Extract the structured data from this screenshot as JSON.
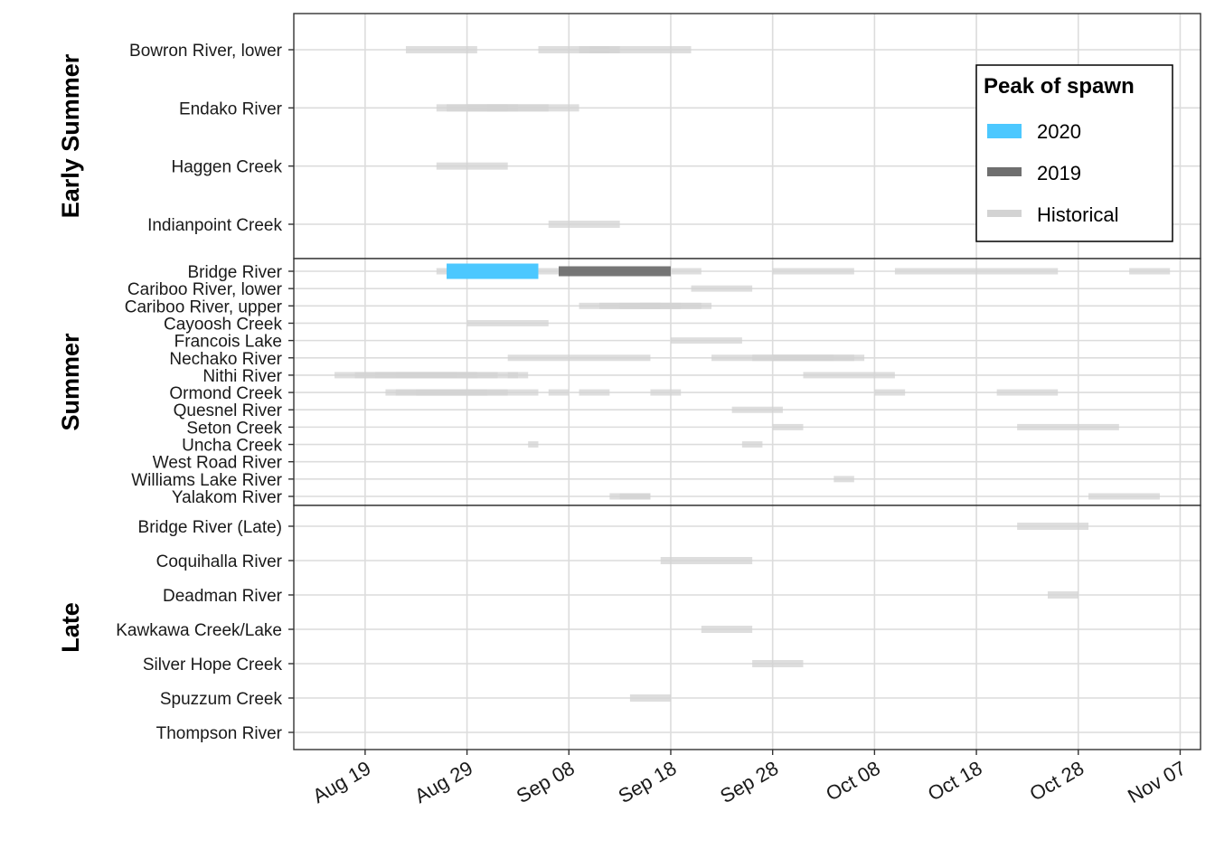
{
  "chart_data": {
    "type": "range-bar",
    "x_axis": {
      "ticks": [
        "Aug 19",
        "Aug 29",
        "Sep 08",
        "Sep 18",
        "Sep 28",
        "Oct 08",
        "Oct 18",
        "Oct 28",
        "Nov 07"
      ],
      "range": [
        "Aug 12",
        "Nov 09"
      ]
    },
    "legend": {
      "title": "Peak of spawn",
      "placement": "top-right",
      "entries": [
        {
          "label": "2020",
          "color": "#4cc8ff"
        },
        {
          "label": "2019",
          "color": "#6f6f6f"
        },
        {
          "label": "Historical",
          "color": "#d3d3d3"
        }
      ]
    },
    "panels": [
      {
        "name": "Early Summer",
        "streams": [
          "Bowron River, lower",
          "Endako River",
          "Haggen Creek",
          "Indianpoint Creek"
        ],
        "historical": [
          [
            "Bowron River, lower",
            "Aug 23",
            "Aug 30"
          ],
          [
            "Bowron River, lower",
            "Sep 05",
            "Sep 20"
          ],
          [
            "Bowron River, lower",
            "Sep 09",
            "Sep 13"
          ],
          [
            "Bowron River, lower",
            "Sep 10",
            "Sep 12"
          ],
          [
            "Endako River",
            "Aug 26",
            "Sep 09"
          ],
          [
            "Endako River",
            "Aug 27",
            "Sep 06"
          ],
          [
            "Endako River",
            "Aug 29",
            "Sep 03"
          ],
          [
            "Endako River",
            "Aug 31",
            "Sep 02"
          ],
          [
            "Haggen Creek",
            "Aug 26",
            "Sep 02"
          ],
          [
            "Indianpoint Creek",
            "Sep 06",
            "Sep 13"
          ]
        ],
        "y2019": [],
        "y2020": []
      },
      {
        "name": "Summer",
        "streams": [
          "Bridge River",
          "Cariboo River, lower",
          "Cariboo River, upper",
          "Cayoosh Creek",
          "Francois Lake",
          "Nechako River",
          "Nithi River",
          "Ormond Creek",
          "Quesnel River",
          "Seton Creek",
          "Uncha Creek",
          "West Road River",
          "Williams Lake River",
          "Yalakom River"
        ],
        "historical": [
          [
            "Bridge River",
            "Aug 26",
            "Sep 21"
          ],
          [
            "Bridge River",
            "Sep 28",
            "Oct 06"
          ],
          [
            "Bridge River",
            "Oct 10",
            "Oct 26"
          ],
          [
            "Bridge River",
            "Nov 02",
            "Nov 06"
          ],
          [
            "Cariboo River, lower",
            "Sep 20",
            "Sep 26"
          ],
          [
            "Cariboo River, upper",
            "Sep 09",
            "Sep 22"
          ],
          [
            "Cariboo River, upper",
            "Sep 11",
            "Sep 21"
          ],
          [
            "Cariboo River, upper",
            "Sep 13",
            "Sep 19"
          ],
          [
            "Cariboo River, upper",
            "Sep 15",
            "Sep 17"
          ],
          [
            "Cayoosh Creek",
            "Aug 29",
            "Sep 06"
          ],
          [
            "Francois Lake",
            "Sep 18",
            "Sep 25"
          ],
          [
            "Nechako River",
            "Sep 02",
            "Sep 16"
          ],
          [
            "Nechako River",
            "Sep 22",
            "Oct 07"
          ],
          [
            "Nechako River",
            "Sep 26",
            "Oct 06"
          ],
          [
            "Nechako River",
            "Sep 28",
            "Oct 04"
          ],
          [
            "Nithi River",
            "Aug 16",
            "Sep 03"
          ],
          [
            "Nithi River",
            "Aug 18",
            "Sep 01"
          ],
          [
            "Nithi River",
            "Aug 20",
            "Aug 30"
          ],
          [
            "Nithi River",
            "Aug 22",
            "Aug 28"
          ],
          [
            "Nithi River",
            "Sep 02",
            "Sep 04"
          ],
          [
            "Nithi River",
            "Oct 01",
            "Oct 10"
          ],
          [
            "Ormond Creek",
            "Aug 21",
            "Sep 05"
          ],
          [
            "Ormond Creek",
            "Aug 22",
            "Sep 02"
          ],
          [
            "Ormond Creek",
            "Aug 24",
            "Aug 31"
          ],
          [
            "Ormond Creek",
            "Sep 06",
            "Sep 08"
          ],
          [
            "Ormond Creek",
            "Sep 09",
            "Sep 12"
          ],
          [
            "Ormond Creek",
            "Sep 16",
            "Sep 19"
          ],
          [
            "Ormond Creek",
            "Oct 08",
            "Oct 11"
          ],
          [
            "Ormond Creek",
            "Oct 20",
            "Oct 26"
          ],
          [
            "Quesnel River",
            "Sep 24",
            "Sep 29"
          ],
          [
            "Seton Creek",
            "Sep 28",
            "Oct 01"
          ],
          [
            "Seton Creek",
            "Oct 22",
            "Nov 01"
          ],
          [
            "Uncha Creek",
            "Sep 04",
            "Sep 05"
          ],
          [
            "Uncha Creek",
            "Sep 25",
            "Sep 27"
          ],
          [
            "Williams Lake River",
            "Oct 04",
            "Oct 06"
          ],
          [
            "Yalakom River",
            "Sep 12",
            "Sep 16"
          ],
          [
            "Yalakom River",
            "Sep 13",
            "Sep 16"
          ],
          [
            "Yalakom River",
            "Oct 29",
            "Nov 05"
          ]
        ],
        "y2019": [
          [
            "Bridge River",
            "Sep 07",
            "Sep 18"
          ]
        ],
        "y2020": [
          [
            "Bridge River",
            "Aug 27",
            "Sep 05"
          ]
        ]
      },
      {
        "name": "Late",
        "streams": [
          "Bridge River (Late)",
          "Coquihalla River",
          "Deadman River",
          "Kawkawa Creek/Lake",
          "Silver Hope Creek",
          "Spuzzum Creek",
          "Thompson River"
        ],
        "historical": [
          [
            "Bridge River (Late)",
            "Oct 22",
            "Oct 29"
          ],
          [
            "Coquihalla River",
            "Sep 17",
            "Sep 26"
          ],
          [
            "Deadman River",
            "Oct 25",
            "Oct 28"
          ],
          [
            "Kawkawa Creek/Lake",
            "Sep 21",
            "Sep 26"
          ],
          [
            "Silver Hope Creek",
            "Sep 26",
            "Oct 01"
          ],
          [
            "Spuzzum Creek",
            "Sep 14",
            "Sep 18"
          ]
        ],
        "y2019": [],
        "y2020": []
      }
    ]
  }
}
